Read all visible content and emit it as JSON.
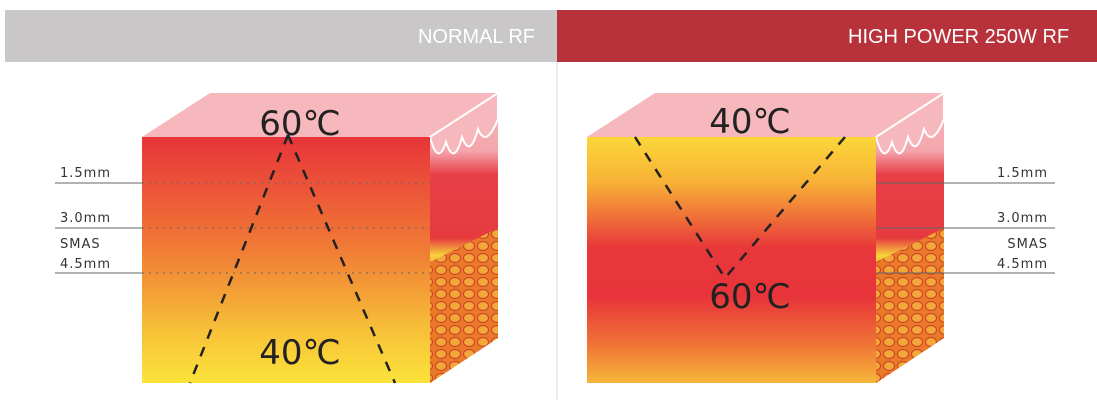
{
  "panels": [
    {
      "title": "NORMAL RF",
      "top_temp": "60℃",
      "bottom_temp": "40℃",
      "depth_labels": [
        "1.5mm",
        "3.0mm",
        "SMAS",
        "4.5mm"
      ]
    },
    {
      "title": "HIGH POWER 250W RF",
      "top_temp": "40℃",
      "bottom_temp": "60℃",
      "depth_labels": [
        "1.5mm",
        "3.0mm",
        "SMAS",
        "4.5mm"
      ]
    }
  ]
}
